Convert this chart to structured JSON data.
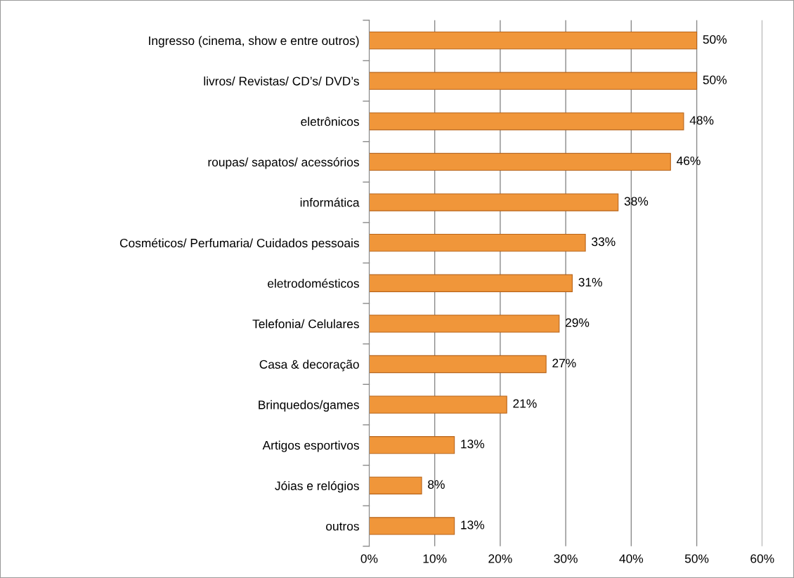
{
  "chart_data": {
    "type": "bar",
    "orientation": "horizontal",
    "categories": [
      "Ingresso (cinema, show e entre outros)",
      "livros/ Revistas/ CD’s/ DVD’s",
      "eletrônicos",
      "roupas/ sapatos/ acessórios",
      "informática",
      "Cosméticos/ Perfumaria/ Cuidados pessoais",
      "eletrodomésticos",
      "Telefonia/ Celulares",
      "Casa & decoração",
      "Brinquedos/games",
      "Artigos esportivos",
      "Jóias e relógios",
      "outros"
    ],
    "values": [
      50,
      50,
      48,
      46,
      38,
      33,
      31,
      29,
      27,
      21,
      13,
      8,
      13
    ],
    "value_labels": [
      "50%",
      "50%",
      "48%",
      "46%",
      "38%",
      "33%",
      "31%",
      "29%",
      "27%",
      "21%",
      "13%",
      "8%",
      "13%"
    ],
    "color": "#f0963a",
    "xlim": [
      0,
      60
    ],
    "xticks": [
      {
        "value": 0,
        "label": "0%"
      },
      {
        "value": 10,
        "label": "10%"
      },
      {
        "value": 20,
        "label": "20%"
      },
      {
        "value": 30,
        "label": "30%"
      },
      {
        "value": 40,
        "label": "40%"
      },
      {
        "value": 50,
        "label": "50%"
      },
      {
        "value": 60,
        "label": "60%"
      }
    ],
    "grid": "x",
    "legend": false
  }
}
